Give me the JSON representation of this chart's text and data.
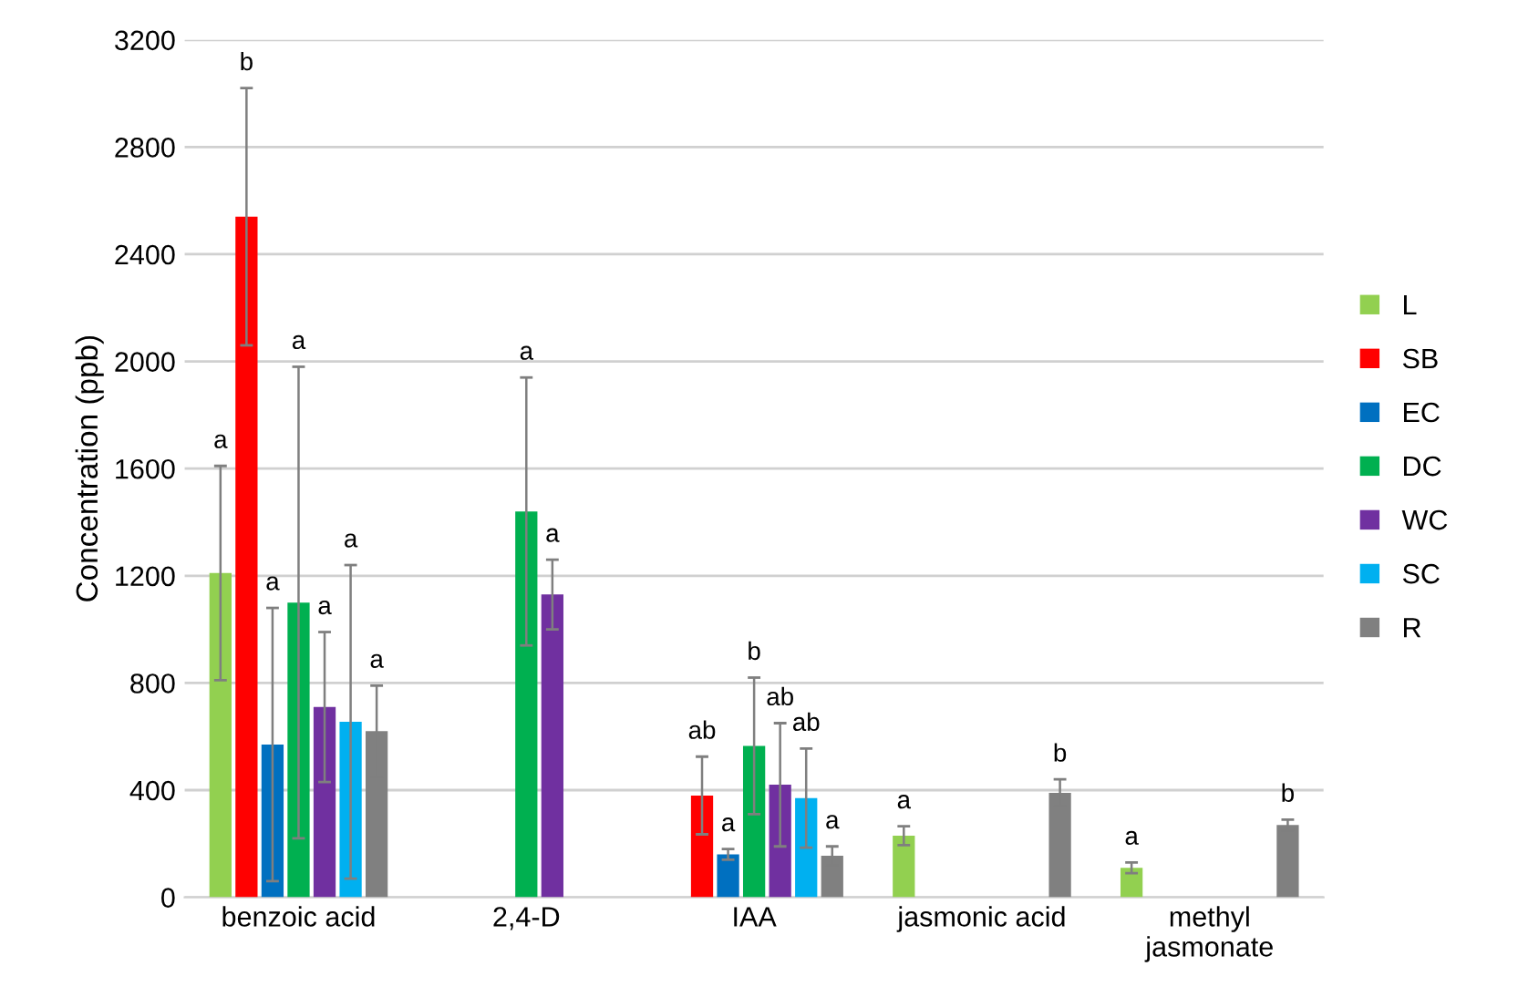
{
  "chart_data": {
    "type": "bar",
    "ylabel": "Concentration (ppb)",
    "categories": [
      "benzoic acid",
      "2,4-D",
      "IAA",
      "jasmonic acid",
      "methyl\njasmonate"
    ],
    "series": [
      {
        "name": "L",
        "color": "#92d050",
        "values": [
          1210,
          null,
          null,
          230,
          110
        ],
        "errors": [
          400,
          null,
          null,
          35,
          20
        ]
      },
      {
        "name": "SB",
        "color": "#ff0000",
        "values": [
          2540,
          null,
          380,
          null,
          null
        ],
        "errors": [
          480,
          null,
          145,
          null,
          null
        ]
      },
      {
        "name": "EC",
        "color": "#0070c0",
        "values": [
          570,
          null,
          160,
          null,
          null
        ],
        "errors": [
          510,
          null,
          20,
          null,
          null
        ]
      },
      {
        "name": "DC",
        "color": "#00b050",
        "values": [
          1100,
          1440,
          565,
          null,
          null
        ],
        "errors": [
          880,
          500,
          255,
          null,
          null
        ]
      },
      {
        "name": "WC",
        "color": "#7030a0",
        "values": [
          710,
          1130,
          420,
          null,
          null
        ],
        "errors": [
          280,
          130,
          230,
          null,
          null
        ]
      },
      {
        "name": "SC",
        "color": "#00b0f0",
        "values": [
          655,
          null,
          370,
          null,
          null
        ],
        "errors": [
          585,
          null,
          185,
          null,
          null
        ]
      },
      {
        "name": "R",
        "color": "#808080",
        "values": [
          620,
          null,
          155,
          390,
          270
        ],
        "errors": [
          170,
          null,
          35,
          50,
          20
        ]
      }
    ],
    "annotations": [
      "a",
      "b",
      "a",
      "a",
      "a",
      "a",
      "a",
      "a",
      "a",
      "ab",
      "a",
      "b",
      "ab",
      "ab",
      "a",
      "a",
      "b",
      "a",
      "b"
    ],
    "ylim": [
      0,
      3200
    ],
    "yticks": [
      0,
      400,
      800,
      1200,
      1600,
      2000,
      2400,
      2800,
      3200
    ],
    "grid": "y",
    "legend": "right"
  }
}
